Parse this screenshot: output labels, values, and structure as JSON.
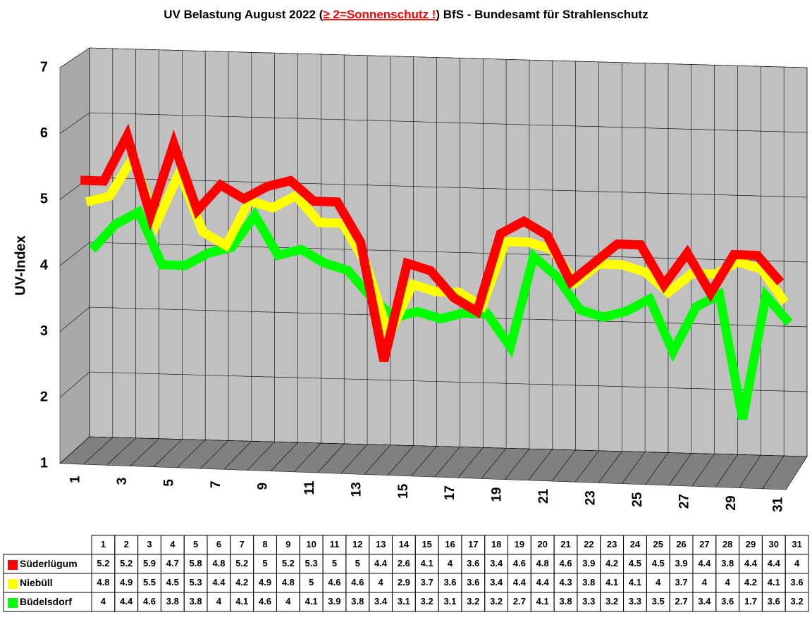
{
  "chart_data": {
    "type": "line3d",
    "title": [
      "UV Belastung August 2022 (",
      "≥ 2=Sonnenschutz !",
      ") BfS - Bundesamt für Strahlenschutz"
    ],
    "y_label": "UV-Index",
    "ylim": [
      1,
      7
    ],
    "yticks": [
      1,
      2,
      3,
      4,
      5,
      6,
      7
    ],
    "grid": true,
    "categories": [
      "1",
      "2",
      "3",
      "4",
      "5",
      "6",
      "7",
      "8",
      "9",
      "10",
      "11",
      "12",
      "13",
      "14",
      "15",
      "16",
      "17",
      "18",
      "19",
      "20",
      "21",
      "22",
      "23",
      "24",
      "25",
      "26",
      "27",
      "28",
      "29",
      "30",
      "31"
    ],
    "series": [
      {
        "name": "Süderlügum",
        "color": "#ff0000",
        "values": [
          5.2,
          5.2,
          5.9,
          4.7,
          5.8,
          4.8,
          5.2,
          5,
          5.2,
          5.3,
          5,
          5,
          4.4,
          2.6,
          4.1,
          4,
          3.6,
          3.4,
          4.6,
          4.8,
          4.6,
          3.9,
          4.2,
          4.5,
          4.5,
          3.9,
          4.4,
          3.8,
          4.4,
          4.4,
          4
        ]
      },
      {
        "name": "Niebüll",
        "color": "#ffff00",
        "values": [
          4.8,
          4.9,
          5.5,
          4.5,
          5.3,
          4.4,
          4.2,
          4.9,
          4.8,
          5,
          4.6,
          4.6,
          4,
          2.9,
          3.7,
          3.6,
          3.6,
          3.4,
          4.4,
          4.4,
          4.3,
          3.8,
          4.1,
          4.1,
          4,
          3.7,
          4,
          4,
          4.2,
          4.1,
          3.6
        ]
      },
      {
        "name": "Büdelsdorf",
        "color": "#00ff00",
        "values": [
          4,
          4.4,
          4.6,
          3.8,
          3.8,
          4,
          4.1,
          4.6,
          4,
          4.1,
          3.9,
          3.8,
          3.4,
          3.1,
          3.2,
          3.1,
          3.2,
          3.2,
          2.7,
          4.1,
          3.8,
          3.3,
          3.2,
          3.3,
          3.5,
          2.7,
          3.4,
          3.6,
          1.7,
          3.6,
          3.2
        ]
      }
    ]
  }
}
